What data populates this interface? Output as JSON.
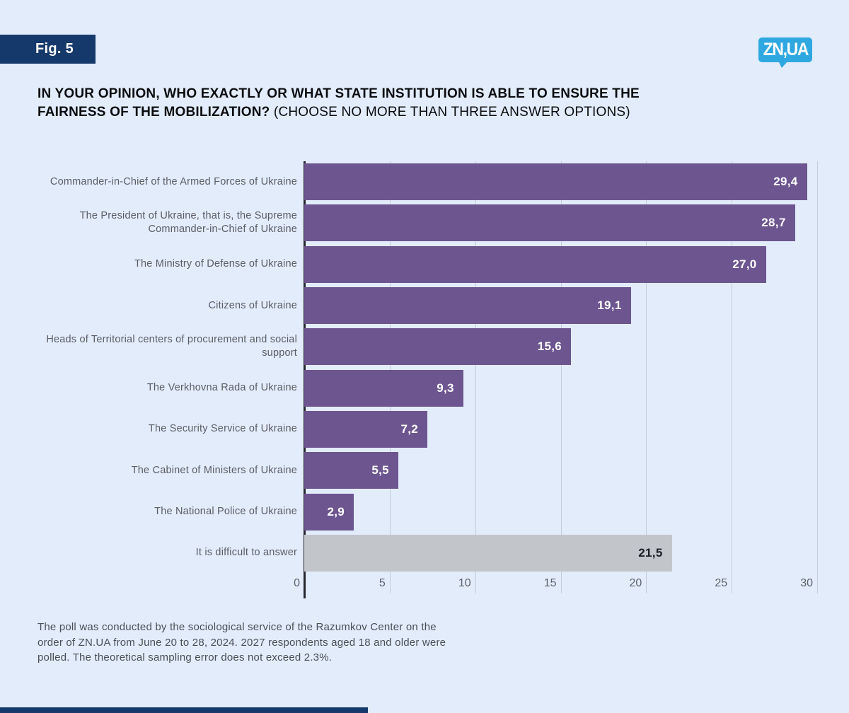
{
  "page": {
    "fig_label": "Fig. 5",
    "logo_text": "ZN,UA",
    "title_bold": "IN YOUR OPINION, WHO EXACTLY OR WHAT STATE INSTITUTION IS ABLE TO ENSURE THE FAIRNESS OF THE MOBILIZATION?",
    "title_regular": " (CHOOSE NO MORE THAN THREE ANSWER OPTIONS)",
    "footnote": "The poll was conducted by the sociological service of the Razumkov Center on the order of ZN.UA from June 20 to 28, 2024. 2027 respondents aged 18 and older were polled. The theoretical sampling error does not exceed 2.3%."
  },
  "colors": {
    "background": "#e2ecfa",
    "badge_navy": "#16396b",
    "logo_blue": "#2fa8e1",
    "bar_purple": "#6d5590",
    "bar_neutral_gray": "#c2c6cb",
    "value_text_on_purple": "#ffffff",
    "value_text_on_gray": "#1d1d27",
    "gridline": "#c6ccd8",
    "axis_line": "#26262e"
  },
  "chart_data": {
    "type": "bar",
    "orientation": "horizontal",
    "title": "IN YOUR OPINION, WHO EXACTLY OR WHAT STATE INSTITUTION IS ABLE TO ENSURE THE FAIRNESS OF THE MOBILIZATION? (CHOOSE NO MORE THAN THREE ANSWER OPTIONS)",
    "categories": [
      "Commander-in-Chief of the Armed Forces of Ukraine",
      "The President of Ukraine, that is, the Supreme Commander-in-Chief of Ukraine",
      "The Ministry of Defense of Ukraine",
      "Citizens of Ukraine",
      "Heads of Territorial centers of procurement and social support",
      "The Verkhovna Rada of Ukraine",
      "The Security Service of Ukraine",
      "The Cabinet of Ministers of Ukraine",
      "The National Police of Ukraine",
      "It is difficult to answer"
    ],
    "values": [
      29.4,
      28.7,
      27.0,
      19.1,
      15.6,
      9.3,
      7.2,
      5.5,
      2.9,
      21.5
    ],
    "value_labels": [
      "29,4",
      "28,7",
      "27,0",
      "19,1",
      "15,6",
      "9,3",
      "7,2",
      "5,5",
      "2,9",
      "21,5"
    ],
    "bar_colors": [
      "#6d5590",
      "#6d5590",
      "#6d5590",
      "#6d5590",
      "#6d5590",
      "#6d5590",
      "#6d5590",
      "#6d5590",
      "#6d5590",
      "#c2c6cb"
    ],
    "value_label_colors": [
      "#ffffff",
      "#ffffff",
      "#ffffff",
      "#ffffff",
      "#ffffff",
      "#ffffff",
      "#ffffff",
      "#ffffff",
      "#ffffff",
      "#1d1d27"
    ],
    "xlabel": "",
    "ylabel": "",
    "xlim": [
      0,
      30
    ],
    "x_ticks": [
      0,
      5,
      10,
      15,
      20,
      25,
      30
    ],
    "grid": true,
    "legend": false
  }
}
